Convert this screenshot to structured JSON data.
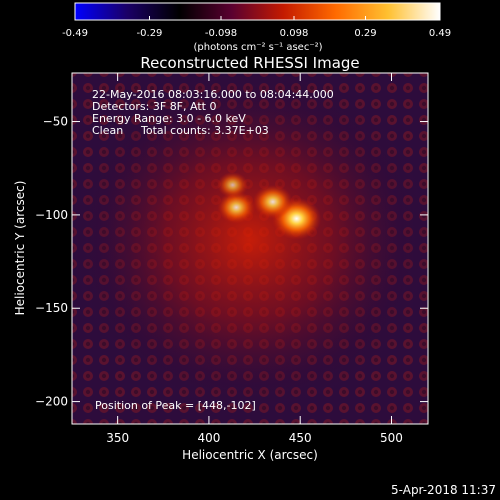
{
  "colorbar": {
    "tick_labels": [
      "-0.49",
      "-0.29",
      "-0.098",
      "0.098",
      "0.29",
      "0.49"
    ],
    "unit_label": "(photons cm⁻² s⁻¹ asec⁻²)",
    "range": [
      -0.49,
      0.49
    ],
    "colors": [
      "#0000ff",
      "#1a0066",
      "#000000",
      "#5a0030",
      "#c41a00",
      "#ff6a00",
      "#ffc030",
      "#ffffff"
    ]
  },
  "header": {
    "title": "Reconstructed RHESSI Image",
    "time_range": "22-May-2016 08:03:16.000 to 08:04:44.000",
    "detectors": "Detectors: 3F 8F, Att 0",
    "energy_range": "Energy Range: 3.0 - 6.0 keV",
    "method": "Clean",
    "total_counts": "Total counts: 3.37E+03"
  },
  "chart_data": {
    "type": "heatmap",
    "title": "Reconstructed RHESSI Image",
    "xlabel": "Heliocentric X (arcsec)",
    "ylabel": "Heliocentric Y (arcsec)",
    "xlim": [
      325,
      520
    ],
    "ylim": [
      -212,
      -24
    ],
    "x_ticks": [
      350,
      400,
      450,
      500
    ],
    "y_ticks": [
      -50,
      -100,
      -150,
      -200
    ],
    "sources": [
      {
        "x": 448,
        "y": -102,
        "intensity": 0.49
      },
      {
        "x": 435,
        "y": -93,
        "intensity": 0.33
      },
      {
        "x": 415,
        "y": -96,
        "intensity": 0.3
      },
      {
        "x": 413,
        "y": -84,
        "intensity": 0.18
      }
    ],
    "peak": [
      448,
      -102
    ],
    "annotation": "Position of Peak = [448,-102]"
  },
  "footer": {
    "date": "5-Apr-2018 11:37"
  }
}
